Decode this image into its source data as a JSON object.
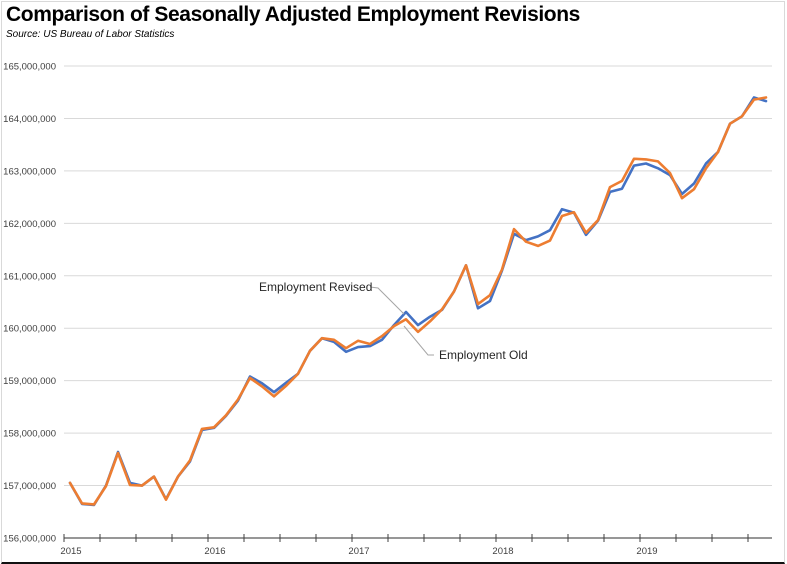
{
  "chart_data": {
    "type": "line",
    "title": "Comparison of Seasonally Adjusted Employment Revisions",
    "subtitle": "Source:  US Bureau of Labor Statistics",
    "xlabel": "",
    "ylabel": "",
    "ylim": [
      156000000,
      165000000
    ],
    "grid": true,
    "legend": "none (inline annotations)",
    "y_ticks": [
      "156,000,000",
      "157,000,000",
      "158,000,000",
      "159,000,000",
      "160,000,000",
      "161,000,000",
      "162,000,000",
      "163,000,000",
      "164,000,000",
      "165,000,000"
    ],
    "y_tick_values": [
      156000000,
      157000000,
      158000000,
      159000000,
      160000000,
      161000000,
      162000000,
      163000000,
      164000000,
      165000000
    ],
    "x_ticks": [
      "2015",
      "2016",
      "2017",
      "2018",
      "2019"
    ],
    "x": [
      "2015-01",
      "2015-02",
      "2015-03",
      "2015-04",
      "2015-05",
      "2015-06",
      "2015-07",
      "2015-08",
      "2015-09",
      "2015-10",
      "2015-11",
      "2015-12",
      "2016-01",
      "2016-02",
      "2016-03",
      "2016-04",
      "2016-05",
      "2016-06",
      "2016-07",
      "2016-08",
      "2016-09",
      "2016-10",
      "2016-11",
      "2016-12",
      "2017-01",
      "2017-02",
      "2017-03",
      "2017-04",
      "2017-05",
      "2017-06",
      "2017-07",
      "2017-08",
      "2017-09",
      "2017-10",
      "2017-11",
      "2017-12",
      "2018-01",
      "2018-02",
      "2018-03",
      "2018-04",
      "2018-05",
      "2018-06",
      "2018-07",
      "2018-08",
      "2018-09",
      "2018-10",
      "2018-11",
      "2018-12",
      "2019-01",
      "2019-02",
      "2019-03",
      "2019-04",
      "2019-05",
      "2019-06",
      "2019-07",
      "2019-08",
      "2019-09",
      "2019-10",
      "2019-11"
    ],
    "series": [
      {
        "name": "Employment Revised",
        "color": "#4472C4",
        "values": [
          157050000,
          156650000,
          156630000,
          157000000,
          157640000,
          157050000,
          157000000,
          157170000,
          156740000,
          157170000,
          157460000,
          158060000,
          158100000,
          158330000,
          158620000,
          159080000,
          158950000,
          158780000,
          158960000,
          159130000,
          159570000,
          159810000,
          159740000,
          159550000,
          159640000,
          159660000,
          159780000,
          160060000,
          160310000,
          160060000,
          160220000,
          160350000,
          160700000,
          161200000,
          160380000,
          160520000,
          161100000,
          161800000,
          161680000,
          161750000,
          161870000,
          162270000,
          162200000,
          161780000,
          162050000,
          162600000,
          162660000,
          163100000,
          163140000,
          163050000,
          162920000,
          162560000,
          162760000,
          163140000,
          163360000,
          163900000,
          164040000,
          164400000,
          164330000
        ]
      },
      {
        "name": "Employment Old",
        "color": "#ED7D31",
        "values": [
          157050000,
          156660000,
          156640000,
          156990000,
          157620000,
          157010000,
          157000000,
          157170000,
          156730000,
          157170000,
          157480000,
          158080000,
          158110000,
          158340000,
          158640000,
          159050000,
          158890000,
          158700000,
          158900000,
          159130000,
          159570000,
          159810000,
          159780000,
          159620000,
          159760000,
          159700000,
          159850000,
          160040000,
          160170000,
          159930000,
          160130000,
          160360000,
          160700000,
          161200000,
          160460000,
          160630000,
          161120000,
          161890000,
          161650000,
          161570000,
          161670000,
          162140000,
          162210000,
          161820000,
          162060000,
          162690000,
          162810000,
          163230000,
          163220000,
          163180000,
          162960000,
          162480000,
          162650000,
          163050000,
          163360000,
          163900000,
          164040000,
          164360000,
          164400000
        ]
      }
    ],
    "annotations": [
      {
        "text": "Employment Revised",
        "series": "Employment Revised"
      },
      {
        "text": "Employment Old",
        "series": "Employment Old"
      }
    ]
  }
}
